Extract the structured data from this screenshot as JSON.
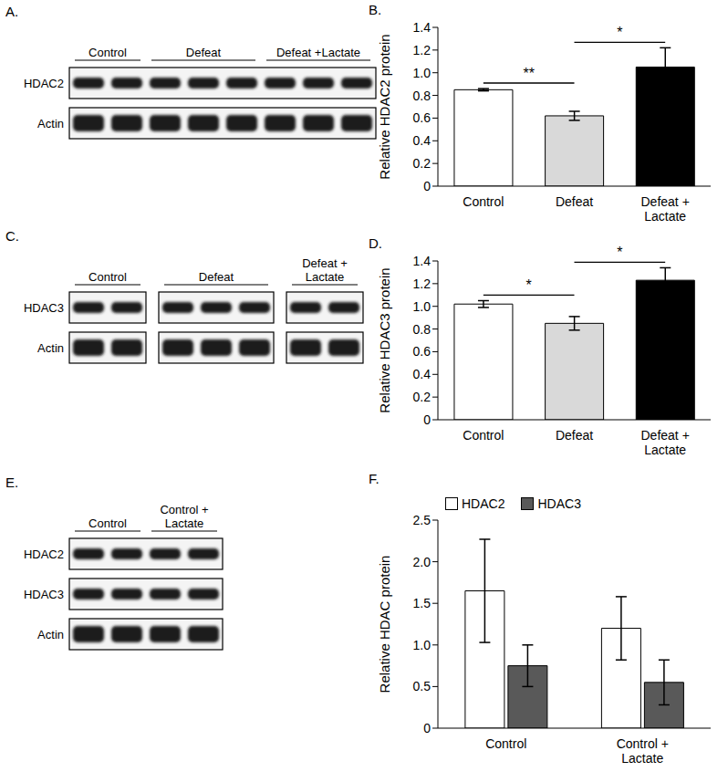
{
  "blots": [
    {
      "title": "A.",
      "rows": [
        "HDAC2",
        "Actin"
      ],
      "boxed_groups": false,
      "groups": [
        {
          "label": "Control",
          "lanes": 2
        },
        {
          "label": "Defeat",
          "lanes": 3
        },
        {
          "label": "Defeat +Lactate",
          "lanes": 3
        }
      ]
    },
    {
      "title": "C.",
      "rows": [
        "HDAC3",
        "Actin"
      ],
      "boxed_groups": true,
      "groups": [
        {
          "label": "Control",
          "lanes": 2
        },
        {
          "label": "Defeat",
          "lanes": 3
        },
        {
          "label": "Defeat + Lactate",
          "lanes": 2
        }
      ]
    },
    {
      "title": "E.",
      "rows": [
        "HDAC2",
        "HDAC3",
        "Actin"
      ],
      "boxed_groups": false,
      "groups": [
        {
          "label": "Control",
          "lanes": 2
        },
        {
          "label": "Control + Lactate",
          "lanes": 2
        }
      ]
    }
  ],
  "chart_data": [
    {
      "type": "bar",
      "title": "B.",
      "y_label": "Relative HDAC2 protein",
      "categories": [
        "Control",
        "Defeat",
        "Defeat + Lactate"
      ],
      "values": [
        0.85,
        0.62,
        1.05
      ],
      "errors": [
        0.01,
        0.04,
        0.17
      ],
      "colors": [
        "#ffffff",
        "#d9d9d9",
        "#000000"
      ],
      "ylim": [
        0,
        1.4
      ],
      "yticks": [
        0,
        0.2,
        0.4,
        0.6,
        0.8,
        {
          "value": 1,
          "label": "1.0"
        },
        1.2,
        1.4
      ],
      "annotations": [
        {
          "text": "**",
          "between": [
            "Control",
            "Defeat"
          ]
        },
        {
          "text": "*",
          "between": [
            "Defeat",
            "Defeat + Lactate"
          ]
        }
      ]
    },
    {
      "type": "bar",
      "title": "D.",
      "y_label": "Relative HDAC3 protein",
      "categories": [
        "Control",
        "Defeat",
        "Defeat + Lactate"
      ],
      "values": [
        1.02,
        0.85,
        1.23
      ],
      "errors": [
        0.03,
        0.06,
        0.11
      ],
      "colors": [
        "#ffffff",
        "#d9d9d9",
        "#000000"
      ],
      "ylim": [
        0,
        1.4
      ],
      "yticks": [
        0,
        0.2,
        0.4,
        0.6,
        0.8,
        {
          "value": 1,
          "label": "1.0"
        },
        1.2,
        1.4
      ],
      "annotations": [
        {
          "text": "*",
          "between": [
            "Control",
            "Defeat"
          ]
        },
        {
          "text": "*",
          "between": [
            "Defeat",
            "Defeat + Lactate"
          ]
        }
      ]
    },
    {
      "type": "bar",
      "title": "F.",
      "y_label": "Relative HDAC protein",
      "categories": [
        "Control",
        "Control + Lactate"
      ],
      "series": [
        {
          "name": "HDAC2",
          "color": "#ffffff",
          "values": [
            1.65,
            1.2
          ],
          "errors": [
            0.62,
            0.38
          ]
        },
        {
          "name": "HDAC3",
          "color": "#595959",
          "values": [
            0.75,
            0.55
          ],
          "errors": [
            0.25,
            0.27
          ]
        }
      ],
      "ylim": [
        0,
        2.5
      ],
      "yticks": [
        0,
        0.5,
        {
          "value": 1,
          "label": "1.0"
        },
        1.5,
        {
          "value": 2,
          "label": "2.0"
        },
        2.5
      ],
      "legend": "top"
    }
  ]
}
